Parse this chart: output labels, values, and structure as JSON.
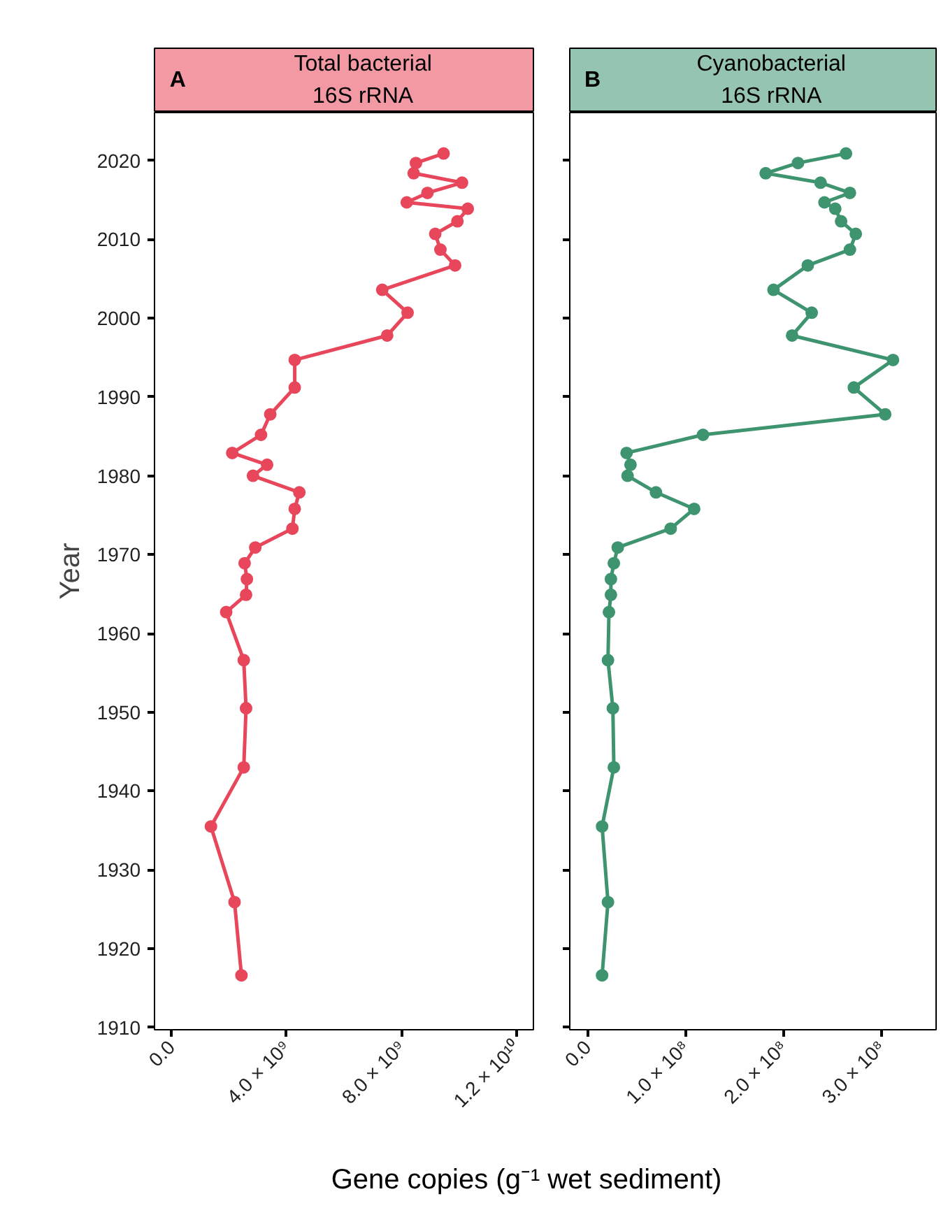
{
  "chart_data": [
    {
      "type": "line",
      "orientation": "horizontal",
      "title": "Total bacterial 16S rRNA",
      "annotations": [
        "A"
      ],
      "ylabel": "Year",
      "xlabel": "Gene copies (g⁻¹ wet sediment)",
      "marker": "circle",
      "line_style": "solid",
      "x": [
        2020.9,
        2019.7,
        2018.4,
        2017.2,
        2015.9,
        2014.7,
        2013.9,
        2012.3,
        2010.7,
        2008.7,
        2006.7,
        2003.6,
        2000.7,
        1997.8,
        1994.7,
        1991.2,
        1987.8,
        1985.2,
        1982.9,
        1981.4,
        1980.0,
        1977.9,
        1975.8,
        1973.3,
        1970.9,
        1968.9,
        1966.9,
        1964.9,
        1962.7,
        1956.6,
        1950.5,
        1943.0,
        1935.5,
        1925.9,
        1916.6
      ],
      "series": [
        {
          "color": "#e8475b",
          "values": [
            9460000000.0,
            8500000000.0,
            8420000000.0,
            10100000000.0,
            8900000000.0,
            8180000000.0,
            10300000000.0,
            9940000000.0,
            9170000000.0,
            9350000000.0,
            9860000000.0,
            7330000000.0,
            8210000000.0,
            7500000000.0,
            4290000000.0,
            4290000000.0,
            3440000000.0,
            3120000000.0,
            2120000000.0,
            3330000000.0,
            2840000000.0,
            4450000000.0,
            4290000000.0,
            4210000000.0,
            2920000000.0,
            2550000000.0,
            2630000000.0,
            2600000000.0,
            1910000000.0,
            2520000000.0,
            2600000000.0,
            2520000000.0,
            1380000000.0,
            2200000000.0,
            2440000000.0
          ]
        }
      ],
      "xlim": [
        -580000000.0,
        12580000000.0
      ],
      "xticks": [
        {
          "value": 0,
          "label": "0.0"
        },
        {
          "value": 4000000000.0,
          "label": "4.0 × 10⁹"
        },
        {
          "value": 8000000000.0,
          "label": "8.0 × 10⁹"
        },
        {
          "value": 12000000000.0,
          "label": "1.2 × 10¹⁰"
        }
      ],
      "ylim": [
        1909.7,
        2026.1
      ],
      "yticks": [
        1910,
        1920,
        1930,
        1940,
        1950,
        1960,
        1970,
        1980,
        1990,
        2000,
        2010,
        2020
      ]
    },
    {
      "type": "line",
      "orientation": "horizontal",
      "title": "Cyanobacterial 16S rRNA",
      "annotations": [
        "B"
      ],
      "marker": "circle",
      "line_style": "solid",
      "tick_labels": "x",
      "x": [
        2020.9,
        2019.7,
        2018.4,
        2017.2,
        2015.9,
        2014.7,
        2013.9,
        2012.3,
        2010.7,
        2008.7,
        2006.7,
        2003.6,
        2000.7,
        1997.8,
        1994.7,
        1991.2,
        1987.8,
        1985.2,
        1982.9,
        1981.4,
        1980.0,
        1977.9,
        1975.8,
        1973.3,
        1970.9,
        1968.9,
        1966.9,
        1964.9,
        1962.7,
        1956.6,
        1950.5,
        1943.0,
        1935.5,
        1925.9,
        1916.6
      ],
      "series": [
        {
          "color": "#3f9470",
          "values": [
            264000000.0,
            215000000.0,
            182000000.0,
            238000000.0,
            268000000.0,
            242000000.0,
            253000000.0,
            259000000.0,
            274000000.0,
            268000000.0,
            225000000.0,
            190000000.0,
            229000000.0,
            209000000.0,
            312000000.0,
            272000000.0,
            304000000.0,
            118000000.0,
            40000000.0,
            44000000.0,
            41000000.0,
            70000000.0,
            109000000.0,
            85000000.0,
            31000000.0,
            27000000.0,
            24000000.0,
            24000000.0,
            22000000.0,
            21000000.0,
            26000000.0,
            27000000.0,
            15000000.0,
            21000000.0,
            15000000.0
          ]
        }
      ],
      "xlim": [
        -18000000.0,
        356000000.0
      ],
      "xticks": [
        {
          "value": 0,
          "label": "0.0"
        },
        {
          "value": 100000000.0,
          "label": "1.0 × 10⁸"
        },
        {
          "value": 200000000.0,
          "label": "2.0 × 10⁸"
        },
        {
          "value": 300000000.0,
          "label": "3.0 × 10⁸"
        }
      ],
      "ylim": [
        1909.7,
        2026.1
      ],
      "yticks": [
        1910,
        1920,
        1930,
        1940,
        1950,
        1960,
        1970,
        1980,
        1990,
        2000,
        2010,
        2020
      ]
    }
  ]
}
